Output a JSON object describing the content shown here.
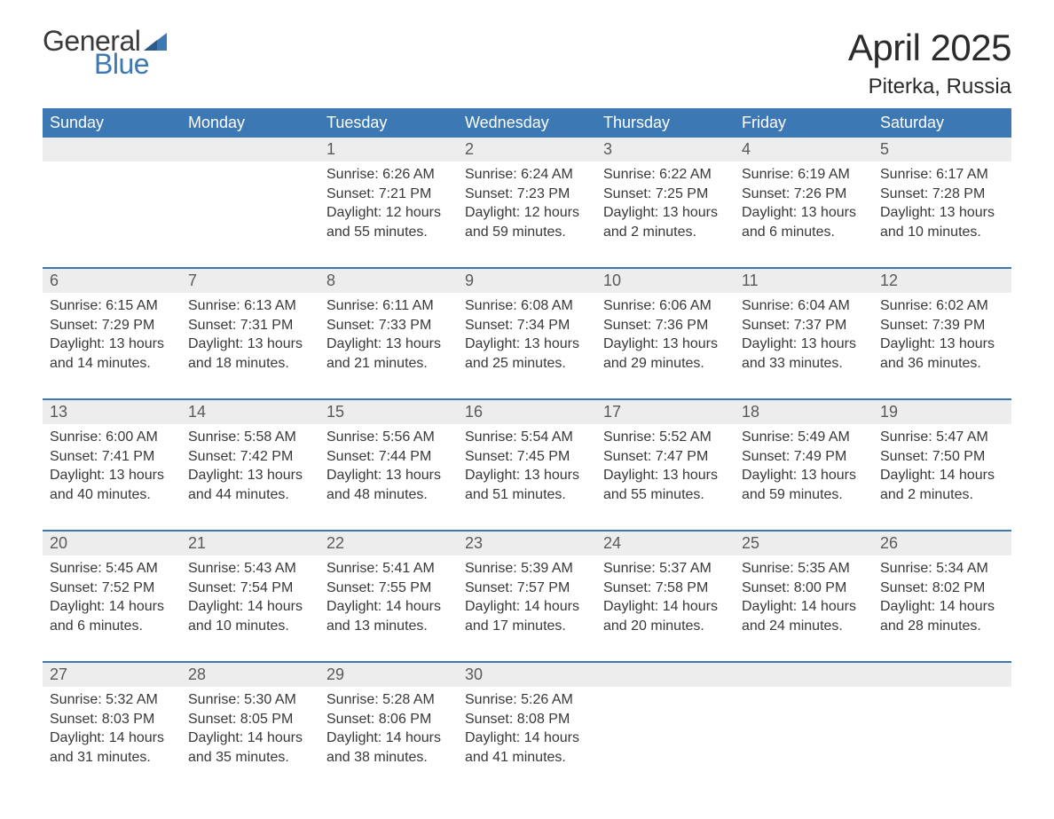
{
  "logo": {
    "text_general": "General",
    "text_blue": "Blue",
    "flag_color": "#3c78b4"
  },
  "title": "April 2025",
  "location": "Piterka, Russia",
  "colors": {
    "header_bg": "#3c78b4",
    "header_text": "#ffffff",
    "daynum_bg": "#ededed",
    "daynum_text": "#5a5a5a",
    "body_text": "#383838",
    "divider": "#3c78b4",
    "background": "#ffffff"
  },
  "typography": {
    "title_fontsize": 42,
    "location_fontsize": 24,
    "weekday_fontsize": 18,
    "daynum_fontsize": 18,
    "body_fontsize": 16
  },
  "weekdays": [
    "Sunday",
    "Monday",
    "Tuesday",
    "Wednesday",
    "Thursday",
    "Friday",
    "Saturday"
  ],
  "weeks": [
    [
      null,
      null,
      {
        "day": "1",
        "sunrise": "Sunrise: 6:26 AM",
        "sunset": "Sunset: 7:21 PM",
        "daylight1": "Daylight: 12 hours",
        "daylight2": "and 55 minutes."
      },
      {
        "day": "2",
        "sunrise": "Sunrise: 6:24 AM",
        "sunset": "Sunset: 7:23 PM",
        "daylight1": "Daylight: 12 hours",
        "daylight2": "and 59 minutes."
      },
      {
        "day": "3",
        "sunrise": "Sunrise: 6:22 AM",
        "sunset": "Sunset: 7:25 PM",
        "daylight1": "Daylight: 13 hours",
        "daylight2": "and 2 minutes."
      },
      {
        "day": "4",
        "sunrise": "Sunrise: 6:19 AM",
        "sunset": "Sunset: 7:26 PM",
        "daylight1": "Daylight: 13 hours",
        "daylight2": "and 6 minutes."
      },
      {
        "day": "5",
        "sunrise": "Sunrise: 6:17 AM",
        "sunset": "Sunset: 7:28 PM",
        "daylight1": "Daylight: 13 hours",
        "daylight2": "and 10 minutes."
      }
    ],
    [
      {
        "day": "6",
        "sunrise": "Sunrise: 6:15 AM",
        "sunset": "Sunset: 7:29 PM",
        "daylight1": "Daylight: 13 hours",
        "daylight2": "and 14 minutes."
      },
      {
        "day": "7",
        "sunrise": "Sunrise: 6:13 AM",
        "sunset": "Sunset: 7:31 PM",
        "daylight1": "Daylight: 13 hours",
        "daylight2": "and 18 minutes."
      },
      {
        "day": "8",
        "sunrise": "Sunrise: 6:11 AM",
        "sunset": "Sunset: 7:33 PM",
        "daylight1": "Daylight: 13 hours",
        "daylight2": "and 21 minutes."
      },
      {
        "day": "9",
        "sunrise": "Sunrise: 6:08 AM",
        "sunset": "Sunset: 7:34 PM",
        "daylight1": "Daylight: 13 hours",
        "daylight2": "and 25 minutes."
      },
      {
        "day": "10",
        "sunrise": "Sunrise: 6:06 AM",
        "sunset": "Sunset: 7:36 PM",
        "daylight1": "Daylight: 13 hours",
        "daylight2": "and 29 minutes."
      },
      {
        "day": "11",
        "sunrise": "Sunrise: 6:04 AM",
        "sunset": "Sunset: 7:37 PM",
        "daylight1": "Daylight: 13 hours",
        "daylight2": "and 33 minutes."
      },
      {
        "day": "12",
        "sunrise": "Sunrise: 6:02 AM",
        "sunset": "Sunset: 7:39 PM",
        "daylight1": "Daylight: 13 hours",
        "daylight2": "and 36 minutes."
      }
    ],
    [
      {
        "day": "13",
        "sunrise": "Sunrise: 6:00 AM",
        "sunset": "Sunset: 7:41 PM",
        "daylight1": "Daylight: 13 hours",
        "daylight2": "and 40 minutes."
      },
      {
        "day": "14",
        "sunrise": "Sunrise: 5:58 AM",
        "sunset": "Sunset: 7:42 PM",
        "daylight1": "Daylight: 13 hours",
        "daylight2": "and 44 minutes."
      },
      {
        "day": "15",
        "sunrise": "Sunrise: 5:56 AM",
        "sunset": "Sunset: 7:44 PM",
        "daylight1": "Daylight: 13 hours",
        "daylight2": "and 48 minutes."
      },
      {
        "day": "16",
        "sunrise": "Sunrise: 5:54 AM",
        "sunset": "Sunset: 7:45 PM",
        "daylight1": "Daylight: 13 hours",
        "daylight2": "and 51 minutes."
      },
      {
        "day": "17",
        "sunrise": "Sunrise: 5:52 AM",
        "sunset": "Sunset: 7:47 PM",
        "daylight1": "Daylight: 13 hours",
        "daylight2": "and 55 minutes."
      },
      {
        "day": "18",
        "sunrise": "Sunrise: 5:49 AM",
        "sunset": "Sunset: 7:49 PM",
        "daylight1": "Daylight: 13 hours",
        "daylight2": "and 59 minutes."
      },
      {
        "day": "19",
        "sunrise": "Sunrise: 5:47 AM",
        "sunset": "Sunset: 7:50 PM",
        "daylight1": "Daylight: 14 hours",
        "daylight2": "and 2 minutes."
      }
    ],
    [
      {
        "day": "20",
        "sunrise": "Sunrise: 5:45 AM",
        "sunset": "Sunset: 7:52 PM",
        "daylight1": "Daylight: 14 hours",
        "daylight2": "and 6 minutes."
      },
      {
        "day": "21",
        "sunrise": "Sunrise: 5:43 AM",
        "sunset": "Sunset: 7:54 PM",
        "daylight1": "Daylight: 14 hours",
        "daylight2": "and 10 minutes."
      },
      {
        "day": "22",
        "sunrise": "Sunrise: 5:41 AM",
        "sunset": "Sunset: 7:55 PM",
        "daylight1": "Daylight: 14 hours",
        "daylight2": "and 13 minutes."
      },
      {
        "day": "23",
        "sunrise": "Sunrise: 5:39 AM",
        "sunset": "Sunset: 7:57 PM",
        "daylight1": "Daylight: 14 hours",
        "daylight2": "and 17 minutes."
      },
      {
        "day": "24",
        "sunrise": "Sunrise: 5:37 AM",
        "sunset": "Sunset: 7:58 PM",
        "daylight1": "Daylight: 14 hours",
        "daylight2": "and 20 minutes."
      },
      {
        "day": "25",
        "sunrise": "Sunrise: 5:35 AM",
        "sunset": "Sunset: 8:00 PM",
        "daylight1": "Daylight: 14 hours",
        "daylight2": "and 24 minutes."
      },
      {
        "day": "26",
        "sunrise": "Sunrise: 5:34 AM",
        "sunset": "Sunset: 8:02 PM",
        "daylight1": "Daylight: 14 hours",
        "daylight2": "and 28 minutes."
      }
    ],
    [
      {
        "day": "27",
        "sunrise": "Sunrise: 5:32 AM",
        "sunset": "Sunset: 8:03 PM",
        "daylight1": "Daylight: 14 hours",
        "daylight2": "and 31 minutes."
      },
      {
        "day": "28",
        "sunrise": "Sunrise: 5:30 AM",
        "sunset": "Sunset: 8:05 PM",
        "daylight1": "Daylight: 14 hours",
        "daylight2": "and 35 minutes."
      },
      {
        "day": "29",
        "sunrise": "Sunrise: 5:28 AM",
        "sunset": "Sunset: 8:06 PM",
        "daylight1": "Daylight: 14 hours",
        "daylight2": "and 38 minutes."
      },
      {
        "day": "30",
        "sunrise": "Sunrise: 5:26 AM",
        "sunset": "Sunset: 8:08 PM",
        "daylight1": "Daylight: 14 hours",
        "daylight2": "and 41 minutes."
      },
      null,
      null,
      null
    ]
  ]
}
